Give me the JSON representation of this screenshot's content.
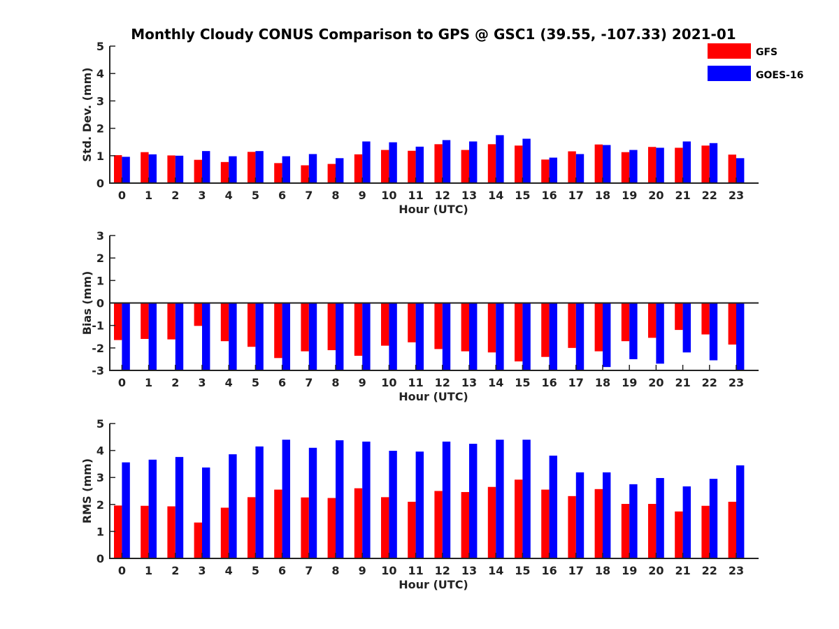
{
  "title": "Monthly Cloudy CONUS Comparison to GPS @ GSC1 (39.55, -107.33) 2021-01",
  "legend": [
    {
      "label": "GFS",
      "color": "#ff0000"
    },
    {
      "label": "GOES-16",
      "color": "#0000ff"
    }
  ],
  "colors": {
    "gfs": "#ff0000",
    "goes": "#0000ff",
    "axis": "#222222"
  },
  "chart_data": [
    {
      "type": "bar",
      "xlabel": "Hour (UTC)",
      "ylabel": "Std. Dev. (mm)",
      "ylim": [
        0,
        5
      ],
      "yticks": [
        0,
        1,
        2,
        3,
        4,
        5
      ],
      "categories": [
        "0",
        "1",
        "2",
        "3",
        "4",
        "5",
        "6",
        "7",
        "8",
        "9",
        "10",
        "11",
        "12",
        "13",
        "14",
        "15",
        "16",
        "17",
        "18",
        "19",
        "20",
        "21",
        "22",
        "23"
      ],
      "series": [
        {
          "name": "GFS",
          "values": [
            1.02,
            1.13,
            1.01,
            0.85,
            0.77,
            1.14,
            0.73,
            0.65,
            0.7,
            1.05,
            1.21,
            1.18,
            1.42,
            1.21,
            1.42,
            1.37,
            0.86,
            1.16,
            1.41,
            1.13,
            1.32,
            1.29,
            1.37,
            1.04
          ]
        },
        {
          "name": "GOES-16",
          "values": [
            0.96,
            1.05,
            1.0,
            1.17,
            0.98,
            1.17,
            0.98,
            1.06,
            0.91,
            1.52,
            1.49,
            1.33,
            1.57,
            1.52,
            1.75,
            1.62,
            0.93,
            1.06,
            1.39,
            1.21,
            1.29,
            1.52,
            1.46,
            0.91
          ]
        }
      ]
    },
    {
      "type": "bar",
      "xlabel": "Hour (UTC)",
      "ylabel": "Bias (mm)",
      "ylim": [
        -3,
        3
      ],
      "yticks": [
        -3,
        -2,
        -1,
        0,
        1,
        2,
        3
      ],
      "categories": [
        "0",
        "1",
        "2",
        "3",
        "4",
        "5",
        "6",
        "7",
        "8",
        "9",
        "10",
        "11",
        "12",
        "13",
        "14",
        "15",
        "16",
        "17",
        "18",
        "19",
        "20",
        "21",
        "22",
        "23"
      ],
      "series": [
        {
          "name": "GFS",
          "values": [
            -1.65,
            -1.6,
            -1.62,
            -1.02,
            -1.7,
            -1.95,
            -2.45,
            -2.15,
            -2.1,
            -2.35,
            -1.9,
            -1.75,
            -2.05,
            -2.15,
            -2.2,
            -2.6,
            -2.4,
            -2.0,
            -2.15,
            -1.7,
            -1.55,
            -1.2,
            -1.4,
            -1.85
          ]
        },
        {
          "name": "GOES-16",
          "values": [
            -3.0,
            -3.0,
            -3.0,
            -3.0,
            -3.0,
            -3.0,
            -3.0,
            -3.0,
            -3.0,
            -3.0,
            -3.0,
            -3.0,
            -3.0,
            -3.0,
            -3.0,
            -3.0,
            -3.0,
            -3.0,
            -2.85,
            -2.5,
            -2.7,
            -2.2,
            -2.55,
            -3.0
          ]
        }
      ]
    },
    {
      "type": "bar",
      "xlabel": "Hour (UTC)",
      "ylabel": "RMS (mm)",
      "ylim": [
        0,
        5
      ],
      "yticks": [
        0,
        1,
        2,
        3,
        4,
        5
      ],
      "categories": [
        "0",
        "1",
        "2",
        "3",
        "4",
        "5",
        "6",
        "7",
        "8",
        "9",
        "10",
        "11",
        "12",
        "13",
        "14",
        "15",
        "16",
        "17",
        "18",
        "19",
        "20",
        "21",
        "22",
        "23"
      ],
      "series": [
        {
          "name": "GFS",
          "values": [
            1.96,
            1.95,
            1.93,
            1.33,
            1.88,
            2.27,
            2.55,
            2.26,
            2.24,
            2.6,
            2.27,
            2.1,
            2.5,
            2.46,
            2.65,
            2.92,
            2.55,
            2.31,
            2.57,
            2.02,
            2.02,
            1.74,
            1.95,
            2.1
          ]
        },
        {
          "name": "GOES-16",
          "values": [
            3.56,
            3.66,
            3.76,
            3.37,
            3.86,
            4.15,
            4.4,
            4.1,
            4.38,
            4.33,
            3.99,
            3.96,
            4.33,
            4.25,
            4.4,
            4.4,
            3.81,
            3.19,
            3.19,
            2.75,
            2.98,
            2.67,
            2.95,
            3.45
          ]
        }
      ]
    }
  ]
}
